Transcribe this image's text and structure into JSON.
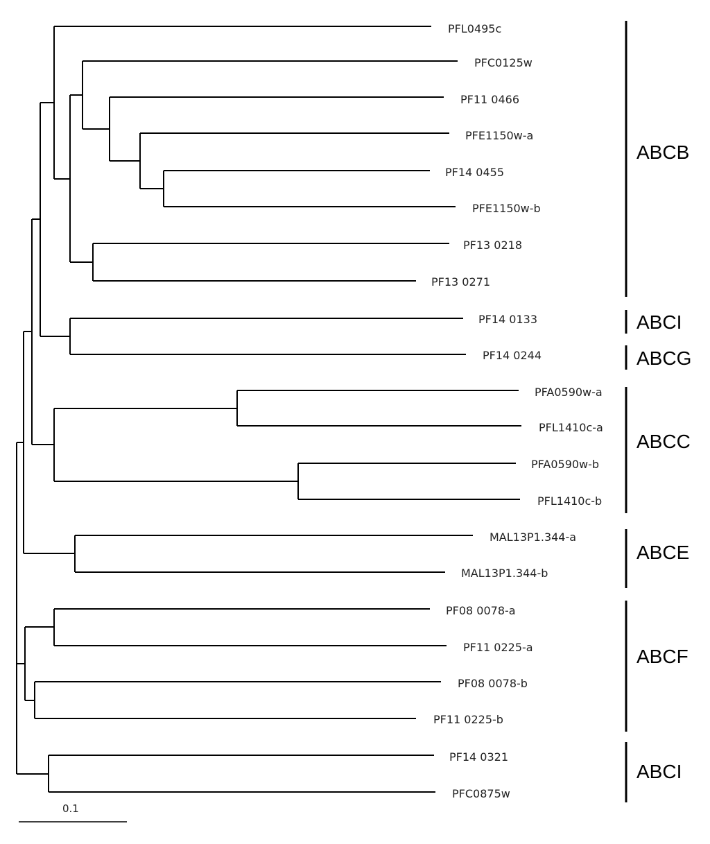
{
  "tree": {
    "leaves": [
      "PFL0495c",
      "PFC0125w",
      "PF11 0466",
      "PFE1150w-a",
      "PF14 0455",
      "PFE1150w-b",
      "PF13 0218",
      "PF13 0271",
      "PF14 0133",
      "PF14 0244",
      "PFA0590w-a",
      "PFL1410c-a",
      "PFA0590w-b",
      "PFL1410c-b",
      "MAL13P1.344-a",
      "MAL13P1.344-b",
      "PF08 0078-a",
      "PF11 0225-a",
      "PF08 0078-b",
      "PF11 0225-b",
      "PF14 0321",
      "PFC0875w"
    ],
    "groups": [
      "ABCB",
      "ABCI",
      "ABCG",
      "ABCC",
      "ABCE",
      "ABCF",
      "ABCI"
    ],
    "scale_bar_label": "0.1"
  }
}
